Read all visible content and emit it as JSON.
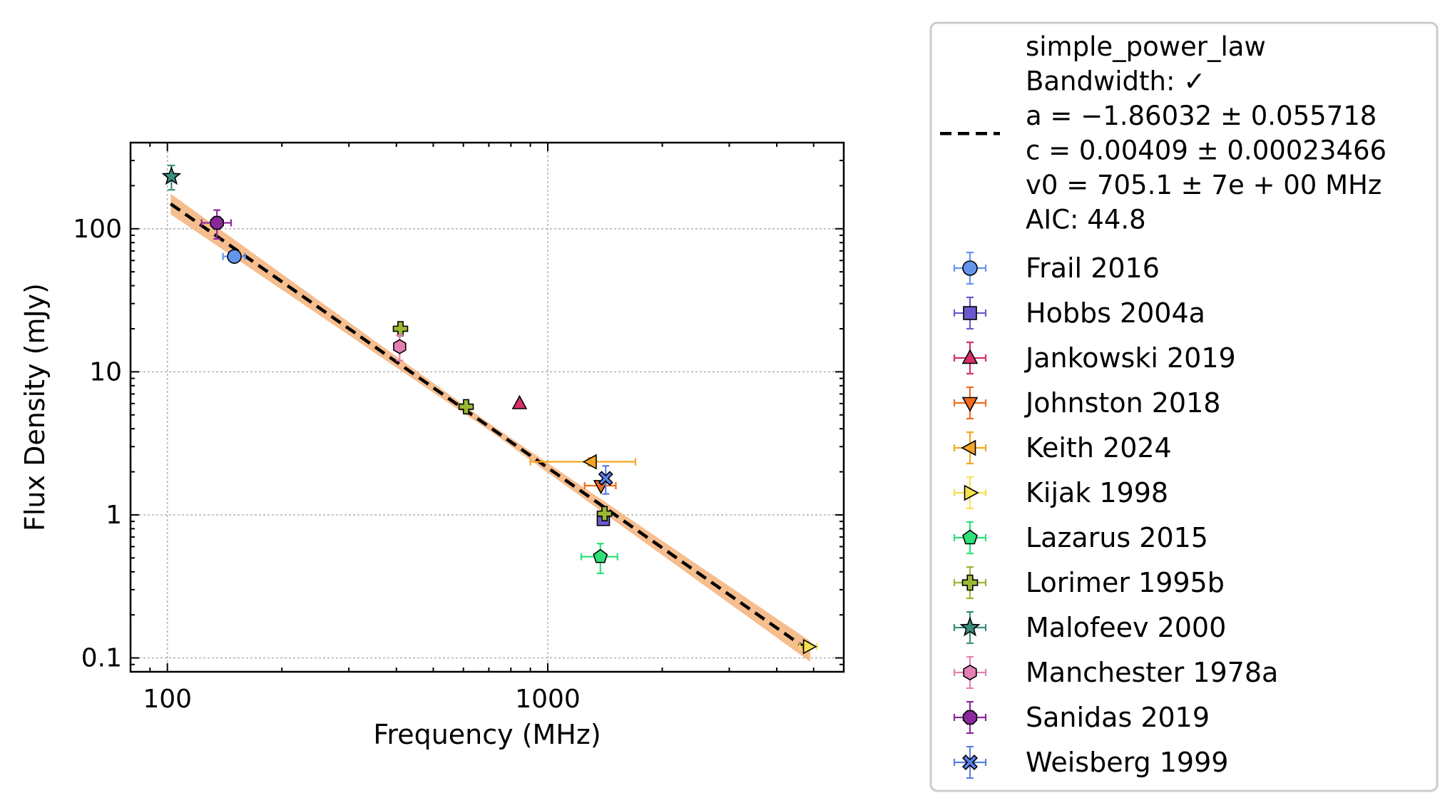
{
  "chart_data": {
    "type": "scatter",
    "xlabel": "Frequency (MHz)",
    "ylabel": "Flux Density (mJy)",
    "xscale": "log",
    "yscale": "log",
    "xlim": [
      80,
      6000
    ],
    "ylim": [
      0.08,
      400
    ],
    "xticks": [
      {
        "value": 100,
        "label": "100"
      },
      {
        "value": 1000,
        "label": "1000"
      }
    ],
    "yticks": [
      {
        "value": 0.1,
        "label": "0.1"
      },
      {
        "value": 1,
        "label": "1"
      },
      {
        "value": 10,
        "label": "10"
      },
      {
        "value": 100,
        "label": "100"
      }
    ],
    "grid": true,
    "legend_position": "outside-right",
    "fit": {
      "label": "simple_power_law",
      "info_lines": [
        "simple_power_law",
        "Bandwidth: ✓",
        "a = −1.86032 ± 0.055718",
        "c = 0.00409 ± 0.00023466",
        "v0 = 705.1 ± 7e + 00 MHz",
        "AIC: 44.8"
      ],
      "a": -1.86032,
      "a_err": 0.055718,
      "c": 0.00409,
      "c_err": 0.00023466,
      "v0": 705.1,
      "freq_range": [
        102,
        4900
      ],
      "line_color": "#000000",
      "band_color": "#f5b27a"
    },
    "series": [
      {
        "name": "Frail 2016",
        "marker": "circle",
        "color": "#6495ed",
        "points": [
          {
            "x": 150,
            "y": 64,
            "xerr": [
              10,
              10
            ],
            "yerr": [
              0,
              0
            ]
          }
        ]
      },
      {
        "name": "Hobbs 2004a",
        "marker": "square",
        "color": "#6a5acd",
        "points": [
          {
            "x": 1400,
            "y": 0.93,
            "xerr": [
              0,
              0
            ],
            "yerr": [
              0.08,
              0.08
            ]
          }
        ]
      },
      {
        "name": "Jankowski 2019",
        "marker": "triangle-up",
        "color": "#d62f6c",
        "points": [
          {
            "x": 843,
            "y": 6.0,
            "xerr": [
              0,
              0
            ],
            "yerr": [
              0,
              0
            ]
          }
        ]
      },
      {
        "name": "Johnston 2018",
        "marker": "triangle-down",
        "color": "#f26b21",
        "points": [
          {
            "x": 1380,
            "y": 1.6,
            "xerr": [
              130,
              130
            ],
            "yerr": [
              0,
              0
            ]
          }
        ]
      },
      {
        "name": "Keith 2024",
        "marker": "triangle-left",
        "color": "#f5a623",
        "points": [
          {
            "x": 1300,
            "y": 2.35,
            "xerr": [
              400,
              400
            ],
            "yerr": [
              0.15,
              0.15
            ]
          }
        ]
      },
      {
        "name": "Kijak 1998",
        "marker": "triangle-right",
        "color": "#f7e050",
        "points": [
          {
            "x": 4850,
            "y": 0.12,
            "xerr": [
              250,
              250
            ],
            "yerr": [
              0.005,
              0.005
            ]
          }
        ]
      },
      {
        "name": "Lazarus 2015",
        "marker": "pentagon",
        "color": "#2ee07a",
        "points": [
          {
            "x": 1375,
            "y": 0.51,
            "xerr": [
              150,
              150
            ],
            "yerr": [
              0.12,
              0.12
            ]
          }
        ]
      },
      {
        "name": "Lorimer 1995b",
        "marker": "plus",
        "color": "#9ab833",
        "points": [
          {
            "x": 410,
            "y": 20,
            "xerr": [
              0,
              0
            ],
            "yerr": [
              0,
              0
            ]
          },
          {
            "x": 610,
            "y": 5.7,
            "xerr": [
              0,
              0
            ],
            "yerr": [
              0,
              0
            ]
          },
          {
            "x": 1410,
            "y": 1.02,
            "xerr": [
              0,
              0
            ],
            "yerr": [
              0.1,
              0.1
            ]
          }
        ]
      },
      {
        "name": "Malofeev 2000",
        "marker": "star",
        "color": "#3a8f7f",
        "points": [
          {
            "x": 102.5,
            "y": 232,
            "xerr": [
              0,
              0
            ],
            "yerr": [
              45,
              45
            ]
          }
        ]
      },
      {
        "name": "Manchester 1978a",
        "marker": "hexagon",
        "color": "#e47fb2",
        "points": [
          {
            "x": 408,
            "y": 15,
            "xerr": [
              0,
              0
            ],
            "yerr": [
              3,
              3
            ]
          }
        ]
      },
      {
        "name": "Sanidas 2019",
        "marker": "octagon",
        "color": "#8a2a9a",
        "points": [
          {
            "x": 135,
            "y": 110,
            "xerr": [
              12,
              12
            ],
            "yerr": [
              25,
              25
            ]
          }
        ]
      },
      {
        "name": "Weisberg 1999",
        "marker": "x",
        "color": "#5b7fe6",
        "points": [
          {
            "x": 1420,
            "y": 1.8,
            "xerr": [
              0,
              0
            ],
            "yerr": [
              0.4,
              0.4
            ]
          }
        ]
      }
    ]
  }
}
